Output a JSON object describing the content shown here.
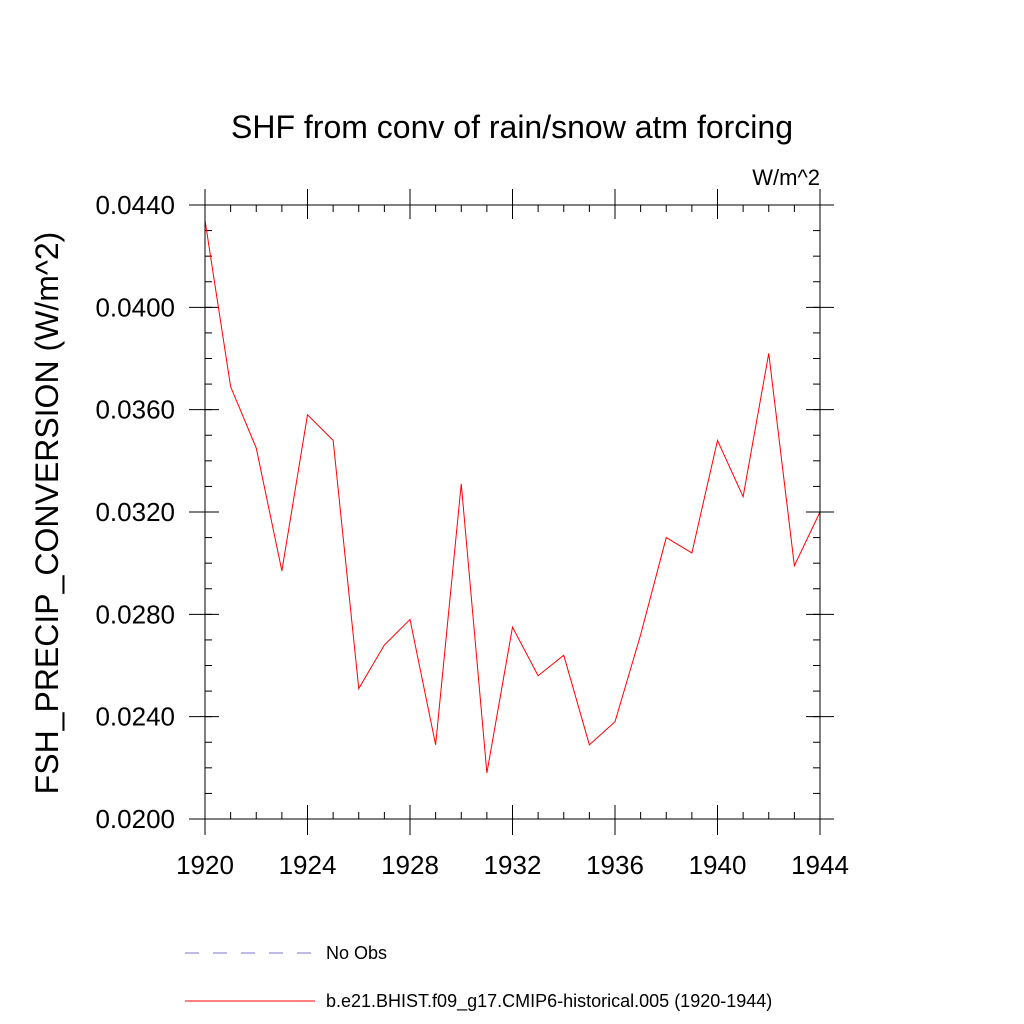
{
  "chart_data": {
    "type": "line",
    "title": "SHF from conv of rain/snow atm forcing",
    "units_label": "W/m^2",
    "xlabel": "",
    "ylabel": "FSH_PRECIP_CONVERSION  (W/m^2)",
    "xlim": [
      1920,
      1944
    ],
    "ylim": [
      0.02,
      0.044
    ],
    "x_ticks": [
      1920,
      1924,
      1928,
      1932,
      1936,
      1940,
      1944
    ],
    "x_tick_labels": [
      "1920",
      "1924",
      "1928",
      "1932",
      "1936",
      "1940",
      "1944"
    ],
    "y_ticks": [
      0.02,
      0.024,
      0.028,
      0.032,
      0.036,
      0.04,
      0.044
    ],
    "y_tick_labels": [
      "0.0200",
      "0.0240",
      "0.0280",
      "0.0320",
      "0.0360",
      "0.0400",
      "0.0440"
    ],
    "series": [
      {
        "name": "b.e21.BHIST.f09_g17.CMIP6-historical.005 (1920-1944)",
        "color": "#ff0000",
        "x": [
          1920,
          1921,
          1922,
          1923,
          1924,
          1925,
          1926,
          1927,
          1928,
          1929,
          1930,
          1931,
          1932,
          1933,
          1934,
          1935,
          1936,
          1937,
          1938,
          1939,
          1940,
          1941,
          1942,
          1943,
          1944
        ],
        "values": [
          0.0434,
          0.0369,
          0.0345,
          0.0297,
          0.0358,
          0.0348,
          0.0251,
          0.0268,
          0.0278,
          0.0229,
          0.0331,
          0.0218,
          0.0275,
          0.0256,
          0.0264,
          0.0229,
          0.0238,
          0.0272,
          0.031,
          0.0304,
          0.0348,
          0.0326,
          0.0382,
          0.0299,
          0.032
        ]
      }
    ],
    "legend": [
      {
        "label": "No Obs",
        "color": "#7777cc",
        "style": "dashed"
      },
      {
        "label": "b.e21.BHIST.f09_g17.CMIP6-historical.005 (1920-1944)",
        "color": "#ff0000",
        "style": "solid"
      }
    ],
    "legend_position": "bottom",
    "grid": false
  }
}
